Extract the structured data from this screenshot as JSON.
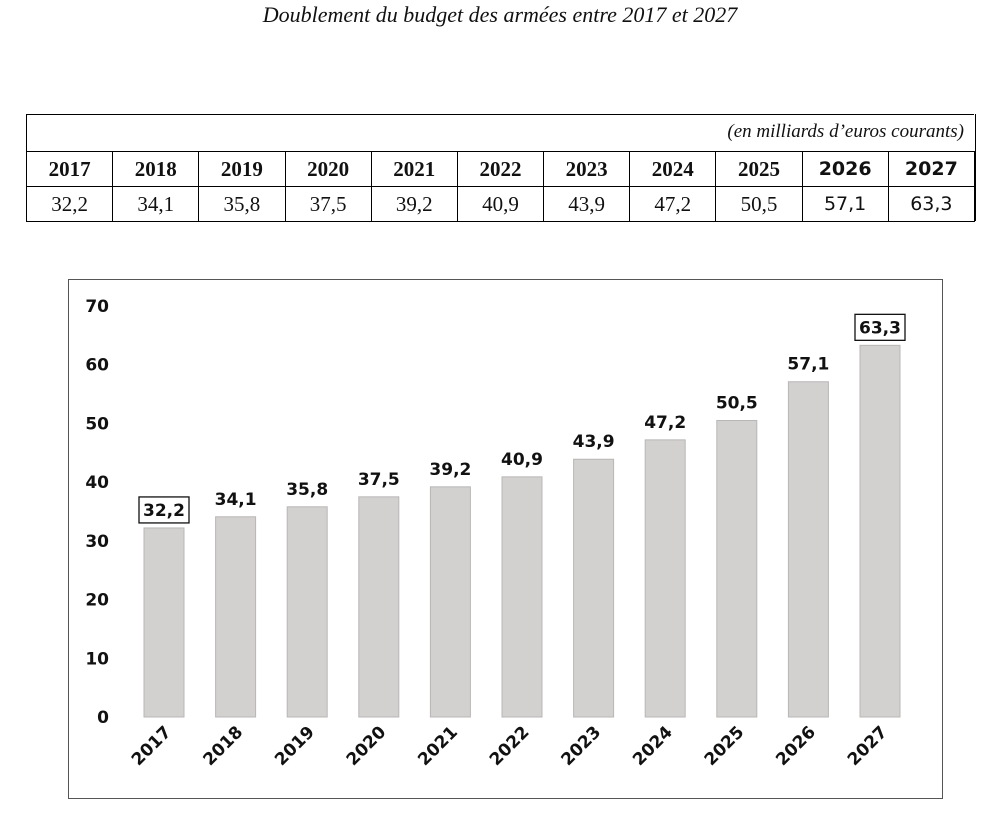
{
  "title": "Doublement du budget des armées entre 2017 et 2027",
  "table": {
    "unit_note": "(en milliards d’euros courants)",
    "years": [
      "2017",
      "2018",
      "2019",
      "2020",
      "2021",
      "2022",
      "2023",
      "2024",
      "2025",
      "2026",
      "2027"
    ],
    "values": [
      "32,2",
      "34,1",
      "35,8",
      "37,5",
      "39,2",
      "40,9",
      "43,9",
      "47,2",
      "50,5",
      "57,1",
      "63,3"
    ]
  },
  "chart_data": {
    "type": "bar",
    "title": "",
    "xlabel": "",
    "ylabel": "",
    "categories": [
      "2017",
      "2018",
      "2019",
      "2020",
      "2021",
      "2022",
      "2023",
      "2024",
      "2025",
      "2026",
      "2027"
    ],
    "values": [
      32.2,
      34.1,
      35.8,
      37.5,
      39.2,
      40.9,
      43.9,
      47.2,
      50.5,
      57.1,
      63.3
    ],
    "data_labels": [
      "32,2",
      "34,1",
      "35,8",
      "37,5",
      "39,2",
      "40,9",
      "43,9",
      "47,2",
      "50,5",
      "57,1",
      "63,3"
    ],
    "boxed_labels": [
      "2017",
      "2027"
    ],
    "y_ticks": [
      "0",
      "10",
      "20",
      "30",
      "40",
      "50",
      "60",
      "70"
    ],
    "ylim": [
      0,
      70
    ],
    "grid": false,
    "colors": {
      "bar": "#d3d0d0",
      "bar_edge": "#b9b6b6"
    }
  }
}
